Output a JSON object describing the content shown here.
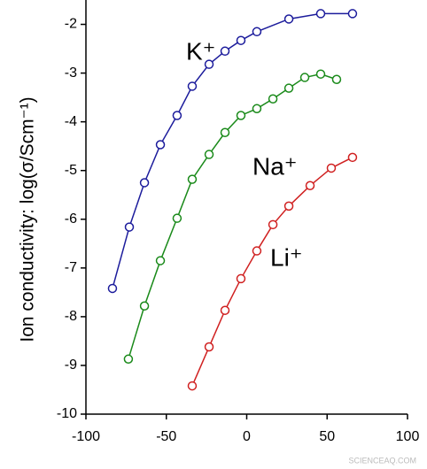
{
  "chart_data": {
    "type": "line",
    "y_label": "Ion conductivity: log(σ/Scm⁻¹)",
    "annotation": "SCIENCEAQ.COM",
    "xlim": [
      -100,
      100
    ],
    "xticks": [
      -100,
      -50,
      0,
      50,
      100
    ],
    "ylim": [
      -10,
      -1.5
    ],
    "yticks": [
      -10,
      -9,
      -8,
      -7,
      -6,
      -5,
      -4,
      -3,
      -2
    ],
    "series": [
      {
        "name": "K⁺",
        "color": "#1c1c9c",
        "x": [
          -83.5,
          -73.0,
          -63.6,
          -53.7,
          -43.3,
          -33.9,
          -23.4,
          -13.5,
          -3.6,
          6.3,
          26.2,
          46.0,
          65.8
        ],
        "values": [
          -7.42,
          -6.16,
          -5.25,
          -4.47,
          -3.87,
          -3.27,
          -2.82,
          -2.55,
          -2.33,
          -2.15,
          -1.89,
          -1.78,
          -1.78
        ]
      },
      {
        "name": "Na⁺",
        "color": "#1a8a1a",
        "x": [
          -73.6,
          -63.6,
          -53.7,
          -43.3,
          -33.9,
          -23.4,
          -13.5,
          -3.6,
          6.3,
          16.3,
          26.2,
          36.1,
          46.0,
          55.9
        ],
        "values": [
          -8.87,
          -7.78,
          -6.85,
          -5.98,
          -5.18,
          -4.67,
          -4.22,
          -3.87,
          -3.73,
          -3.53,
          -3.31,
          -3.09,
          -3.02,
          -3.13
        ]
      },
      {
        "name": "Li⁺",
        "color": "#d02020",
        "x": [
          -33.9,
          -23.4,
          -13.5,
          -3.6,
          6.3,
          16.3,
          26.2,
          39.4,
          52.6,
          65.8
        ],
        "values": [
          -9.42,
          -8.62,
          -7.87,
          -7.22,
          -6.65,
          -6.11,
          -5.73,
          -5.31,
          -4.95,
          -4.73
        ]
      }
    ]
  }
}
